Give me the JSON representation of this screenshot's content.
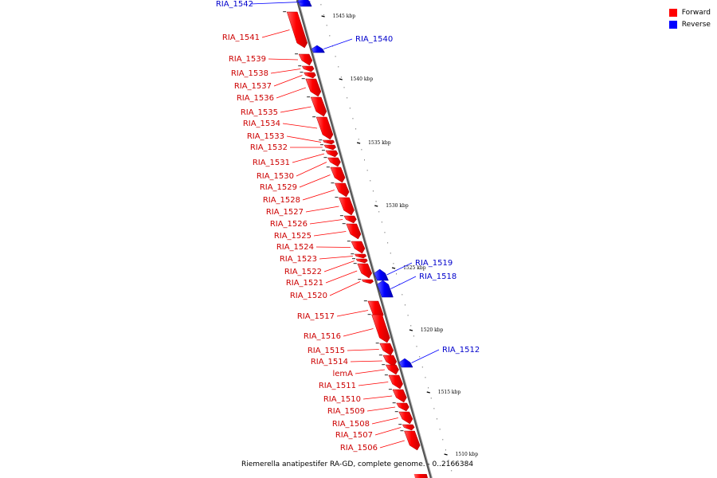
{
  "legend": [
    {
      "label": "Forward",
      "color": "#ff0000"
    },
    {
      "label": "Reverse",
      "color": "#0000ff"
    }
  ],
  "caption": "Riemerella anatipestifer RA-GD, complete genome. - 0..2166384",
  "ticks": [
    "1545 kbp",
    "1540 kbp",
    "1535 kbp",
    "1530 kbp",
    "1525 kbp",
    "1520 kbp",
    "1515 kbp",
    "1510 kbp"
  ],
  "genes": [
    {
      "name": "RIA_1542",
      "strand": "reverse"
    },
    {
      "name": "RIA_1541",
      "strand": "forward"
    },
    {
      "name": "RIA_1540",
      "strand": "reverse"
    },
    {
      "name": "RIA_1539",
      "strand": "forward"
    },
    {
      "name": "RIA_1538",
      "strand": "forward"
    },
    {
      "name": "RIA_1537",
      "strand": "forward"
    },
    {
      "name": "RIA_1536",
      "strand": "forward"
    },
    {
      "name": "RIA_1535",
      "strand": "forward"
    },
    {
      "name": "RIA_1534",
      "strand": "forward"
    },
    {
      "name": "RIA_1533",
      "strand": "forward"
    },
    {
      "name": "RIA_1532",
      "strand": "forward"
    },
    {
      "name": "RIA_1531",
      "strand": "forward"
    },
    {
      "name": "RIA_1530",
      "strand": "forward"
    },
    {
      "name": "RIA_1529",
      "strand": "forward"
    },
    {
      "name": "RIA_1528",
      "strand": "forward"
    },
    {
      "name": "RIA_1527",
      "strand": "forward"
    },
    {
      "name": "RIA_1526",
      "strand": "forward"
    },
    {
      "name": "RIA_1525",
      "strand": "forward"
    },
    {
      "name": "RIA_1524",
      "strand": "forward"
    },
    {
      "name": "RIA_1523",
      "strand": "forward"
    },
    {
      "name": "RIA_1522",
      "strand": "forward"
    },
    {
      "name": "RIA_1521",
      "strand": "forward"
    },
    {
      "name": "RIA_1520",
      "strand": "forward"
    },
    {
      "name": "RIA_1519",
      "strand": "reverse"
    },
    {
      "name": "RIA_1518",
      "strand": "reverse"
    },
    {
      "name": "RIA_1517",
      "strand": "forward"
    },
    {
      "name": "RIA_1516",
      "strand": "forward"
    },
    {
      "name": "RIA_1515",
      "strand": "forward"
    },
    {
      "name": "RIA_1514",
      "strand": "forward"
    },
    {
      "name": "lemA",
      "strand": "forward"
    },
    {
      "name": "RIA_1512",
      "strand": "reverse"
    },
    {
      "name": "RIA_1511",
      "strand": "forward"
    },
    {
      "name": "RIA_1510",
      "strand": "forward"
    },
    {
      "name": "RIA_1509",
      "strand": "forward"
    },
    {
      "name": "RIA_1508",
      "strand": "forward"
    },
    {
      "name": "RIA_1507",
      "strand": "forward"
    },
    {
      "name": "RIA_1506",
      "strand": "forward"
    }
  ]
}
